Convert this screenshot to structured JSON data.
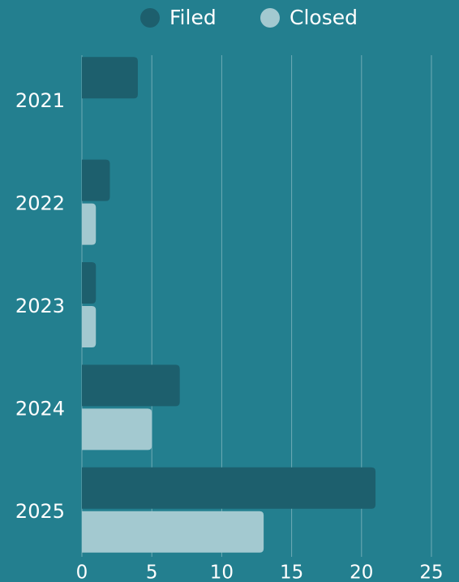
{
  "chart_data": {
    "type": "hbar",
    "categories": [
      "2021",
      "2022",
      "2023",
      "2024",
      "2025"
    ],
    "series": [
      {
        "name": "Filed",
        "color": "#1d5f6d",
        "values": [
          4,
          2,
          1,
          7,
          21
        ]
      },
      {
        "name": "Closed",
        "color": "#a3c9d0",
        "values": [
          0,
          1,
          1,
          5,
          13
        ]
      }
    ],
    "xlim": [
      0,
      25
    ],
    "xticks": [
      0,
      5,
      10,
      15,
      20,
      25
    ],
    "grid": true,
    "legend": "top"
  }
}
